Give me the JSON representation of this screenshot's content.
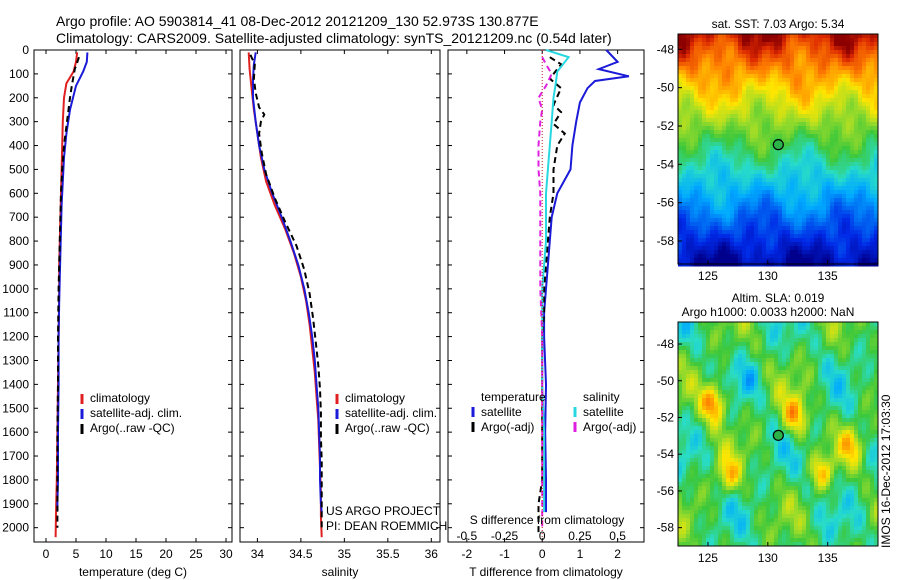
{
  "title": {
    "line1": "Argo profile: AO 5903814_41 08-Dec-2012 20121209_130 52.973S 130.877E",
    "line2": "Climatology: CARS2009. Satellite-adjusted climatology: synTS_20121209.nc (0.54d later)"
  },
  "colors": {
    "climatology": "#e02020",
    "satellite": "#1a1ad8",
    "argo_T": "#000000",
    "satellite_S": "#28d8e0",
    "argo_S": "#e020e0"
  },
  "chart_data": [
    {
      "id": "temperature",
      "type": "line",
      "xlabel": "temperature (deg C)",
      "ylabel": "",
      "xlim": [
        -2,
        31
      ],
      "ylim": [
        2060,
        0
      ],
      "xticks": [
        0,
        5,
        10,
        15,
        20,
        25,
        30
      ],
      "yticks": [
        0,
        100,
        200,
        300,
        400,
        500,
        600,
        700,
        800,
        900,
        1000,
        1100,
        1200,
        1300,
        1400,
        1500,
        1600,
        1700,
        1800,
        1900,
        2000
      ],
      "legend": [
        "climatology",
        "satellite-adj. clim.",
        "Argo(..raw -QC)"
      ],
      "series": [
        {
          "name": "climatology",
          "style": "solid",
          "color_key": "climatology",
          "points": [
            [
              5.2,
              10
            ],
            [
              5.0,
              50
            ],
            [
              4.6,
              90
            ],
            [
              3.4,
              140
            ],
            [
              3.0,
              200
            ],
            [
              2.8,
              300
            ],
            [
              2.7,
              400
            ],
            [
              2.6,
              500
            ],
            [
              2.5,
              600
            ],
            [
              2.4,
              700
            ],
            [
              2.3,
              800
            ],
            [
              2.2,
              900
            ],
            [
              2.2,
              1000
            ],
            [
              2.1,
              1200
            ],
            [
              2.0,
              1400
            ],
            [
              1.9,
              1600
            ],
            [
              1.8,
              1800
            ],
            [
              1.7,
              1900
            ],
            [
              1.6,
              2040
            ]
          ]
        },
        {
          "name": "satellite-adj. clim.",
          "style": "solid",
          "color_key": "satellite",
          "points": [
            [
              6.9,
              10
            ],
            [
              6.8,
              50
            ],
            [
              6.2,
              90
            ],
            [
              5.0,
              150
            ],
            [
              4.0,
              250
            ],
            [
              3.4,
              350
            ],
            [
              3.0,
              450
            ],
            [
              2.8,
              550
            ],
            [
              2.6,
              650
            ],
            [
              2.5,
              750
            ],
            [
              2.4,
              850
            ],
            [
              2.3,
              950
            ],
            [
              2.2,
              1050
            ],
            [
              2.1,
              1200
            ],
            [
              2.1,
              1400
            ],
            [
              2.0,
              1600
            ],
            [
              2.0,
              1800
            ],
            [
              1.9,
              1900
            ],
            [
              1.9,
              1930
            ]
          ]
        },
        {
          "name": "Argo(..raw -QC)",
          "style": "dashed",
          "color_key": "argo_T",
          "points": [
            [
              5.5,
              30
            ],
            [
              4.8,
              80
            ],
            [
              4.3,
              150
            ],
            [
              4.0,
              200
            ],
            [
              3.5,
              300
            ],
            [
              3.0,
              400
            ],
            [
              2.7,
              500
            ],
            [
              2.5,
              600
            ],
            [
              2.4,
              700
            ],
            [
              2.3,
              800
            ],
            [
              2.2,
              900
            ],
            [
              2.1,
              1000
            ],
            [
              2.0,
              1200
            ],
            [
              2.0,
              1400
            ],
            [
              1.9,
              1600
            ],
            [
              1.9,
              1800
            ],
            [
              1.9,
              2000
            ]
          ]
        }
      ]
    },
    {
      "id": "salinity",
      "type": "line",
      "xlabel": "salinity",
      "ylabel": "",
      "xlim": [
        33.8,
        36.1
      ],
      "ylim": [
        2060,
        0
      ],
      "xticks": [
        34,
        34.5,
        35,
        35.5,
        36
      ],
      "legend": [
        "climatology",
        "satellite-adj. clim.",
        "Argo(..raw -QC)"
      ],
      "series": [
        {
          "name": "climatology",
          "style": "solid",
          "color_key": "climatology",
          "points": [
            [
              33.9,
              10
            ],
            [
              33.91,
              80
            ],
            [
              33.93,
              150
            ],
            [
              33.96,
              250
            ],
            [
              34.0,
              350
            ],
            [
              34.04,
              450
            ],
            [
              34.1,
              550
            ],
            [
              34.2,
              650
            ],
            [
              34.32,
              750
            ],
            [
              34.42,
              850
            ],
            [
              34.5,
              950
            ],
            [
              34.56,
              1050
            ],
            [
              34.6,
              1150
            ],
            [
              34.63,
              1250
            ],
            [
              34.66,
              1350
            ],
            [
              34.68,
              1450
            ],
            [
              34.7,
              1550
            ],
            [
              34.71,
              1650
            ],
            [
              34.72,
              1750
            ],
            [
              34.73,
              1850
            ],
            [
              34.73,
              1950
            ],
            [
              34.74,
              2040
            ]
          ]
        },
        {
          "name": "satellite-adj. clim.",
          "style": "solid",
          "color_key": "satellite",
          "points": [
            [
              33.98,
              10
            ],
            [
              33.96,
              60
            ],
            [
              33.95,
              120
            ],
            [
              33.95,
              200
            ],
            [
              33.98,
              300
            ],
            [
              34.02,
              400
            ],
            [
              34.08,
              500
            ],
            [
              34.17,
              600
            ],
            [
              34.28,
              700
            ],
            [
              34.38,
              800
            ],
            [
              34.47,
              900
            ],
            [
              34.54,
              1000
            ],
            [
              34.59,
              1100
            ],
            [
              34.63,
              1200
            ],
            [
              34.66,
              1300
            ],
            [
              34.68,
              1400
            ],
            [
              34.7,
              1500
            ],
            [
              34.71,
              1600
            ],
            [
              34.72,
              1700
            ],
            [
              34.72,
              1800
            ],
            [
              34.73,
              1900
            ],
            [
              34.74,
              1935
            ]
          ]
        },
        {
          "name": "Argo(..raw -QC)",
          "style": "dashed",
          "color_key": "argo_T",
          "points": [
            [
              33.92,
              20
            ],
            [
              33.97,
              60
            ],
            [
              33.96,
              120
            ],
            [
              33.98,
              180
            ],
            [
              34.02,
              240
            ],
            [
              34.08,
              270
            ],
            [
              34.04,
              300
            ],
            [
              34.02,
              350
            ],
            [
              34.05,
              430
            ],
            [
              34.1,
              520
            ],
            [
              34.2,
              620
            ],
            [
              34.32,
              720
            ],
            [
              34.45,
              820
            ],
            [
              34.54,
              920
            ],
            [
              34.6,
              1020
            ],
            [
              34.64,
              1120
            ],
            [
              34.67,
              1220
            ],
            [
              34.7,
              1320
            ],
            [
              34.72,
              1420
            ],
            [
              34.73,
              1520
            ],
            [
              34.73,
              1620
            ],
            [
              34.74,
              1720
            ],
            [
              34.74,
              1820
            ],
            [
              34.74,
              1920
            ],
            [
              34.74,
              2000
            ]
          ]
        }
      ],
      "annotations": [
        "US ARGO PROJECT",
        "PI: DEAN ROEMMICH"
      ]
    },
    {
      "id": "differences",
      "type": "line",
      "xlabel": "T difference from climatology",
      "xlabel2": "S difference from climatology",
      "xlim": [
        -2.5,
        2.7
      ],
      "ylim": [
        2060,
        0
      ],
      "xticks": [
        -2,
        -1,
        0,
        1,
        2
      ],
      "xticks2": [
        -0.5,
        -0.25,
        0,
        0.25,
        0.5
      ],
      "legend_headers": [
        "temperature",
        "salinity"
      ],
      "legend": [
        "satellite",
        "Argo(-adj)",
        "satellite",
        "Argo(-adj)"
      ],
      "series": [
        {
          "name": "satellite",
          "group": "temperature",
          "style": "solid",
          "color_key": "satellite",
          "points": [
            [
              1.7,
              0
            ],
            [
              2.0,
              50
            ],
            [
              1.5,
              80
            ],
            [
              2.3,
              110
            ],
            [
              1.4,
              130
            ],
            [
              1.2,
              160
            ],
            [
              1.0,
              220
            ],
            [
              0.9,
              300
            ],
            [
              0.8,
              400
            ],
            [
              0.75,
              500
            ],
            [
              0.4,
              600
            ],
            [
              0.25,
              700
            ],
            [
              0.2,
              800
            ],
            [
              0.15,
              900
            ],
            [
              0.1,
              1000
            ],
            [
              0.05,
              1100
            ],
            [
              0.05,
              1200
            ],
            [
              0.1,
              1400
            ],
            [
              0.08,
              1600
            ],
            [
              0.1,
              1800
            ],
            [
              0.1,
              1900
            ],
            [
              0.1,
              1935
            ]
          ]
        },
        {
          "name": "Argo(-adj)",
          "group": "temperature",
          "style": "dashed",
          "color_key": "argo_T",
          "points": [
            [
              0.2,
              30
            ],
            [
              0.5,
              60
            ],
            [
              0.2,
              120
            ],
            [
              0.5,
              160
            ],
            [
              0.3,
              230
            ],
            [
              0.5,
              260
            ],
            [
              0.3,
              310
            ],
            [
              0.6,
              350
            ],
            [
              0.4,
              400
            ],
            [
              0.3,
              500
            ],
            [
              0.3,
              600
            ],
            [
              0.2,
              700
            ],
            [
              0.15,
              800
            ],
            [
              0.1,
              900
            ],
            [
              0.05,
              1000
            ],
            [
              0.05,
              1100
            ],
            [
              0.0,
              1200
            ],
            [
              0.0,
              1400
            ],
            [
              0.0,
              1600
            ],
            [
              0.0,
              1800
            ],
            [
              -0.1,
              1900
            ],
            [
              -0.1,
              2020
            ]
          ]
        },
        {
          "name": "satellite",
          "group": "salinity",
          "style": "solid",
          "color_key": "satellite_S",
          "points": [
            [
              0.1,
              0
            ],
            [
              0.7,
              30
            ],
            [
              0.4,
              90
            ],
            [
              0.35,
              150
            ],
            [
              0.3,
              200
            ],
            [
              0.25,
              300
            ],
            [
              0.2,
              400
            ],
            [
              0.15,
              500
            ],
            [
              0.1,
              600
            ],
            [
              0.1,
              700
            ],
            [
              0.1,
              800
            ],
            [
              0.05,
              900
            ],
            [
              0.0,
              1000
            ],
            [
              0.0,
              1100
            ],
            [
              0.0,
              1200
            ],
            [
              0.0,
              1400
            ],
            [
              0.05,
              1600
            ],
            [
              0.05,
              1800
            ],
            [
              0.05,
              1935
            ]
          ]
        },
        {
          "name": "Argo(-adj)",
          "group": "salinity",
          "style": "dashed",
          "color_key": "argo_S",
          "points": [
            [
              0.0,
              30
            ],
            [
              0.1,
              60
            ],
            [
              0.25,
              100
            ],
            [
              0.1,
              150
            ],
            [
              -0.1,
              200
            ],
            [
              0.0,
              250
            ],
            [
              -0.05,
              300
            ],
            [
              -0.1,
              400
            ],
            [
              -0.1,
              500
            ],
            [
              -0.05,
              600
            ],
            [
              -0.05,
              700
            ],
            [
              -0.05,
              800
            ],
            [
              -0.05,
              900
            ],
            [
              -0.05,
              1000
            ],
            [
              0.0,
              1200
            ],
            [
              0.0,
              1400
            ],
            [
              0.0,
              1600
            ],
            [
              0.0,
              1800
            ],
            [
              0.0,
              2000
            ]
          ]
        }
      ]
    },
    {
      "id": "sst-map",
      "type": "heatmap",
      "title": "sat. SST: 7.03 Argo: 5.34",
      "xlim": [
        122.5,
        139.2
      ],
      "ylim": [
        -59.2,
        -47.2
      ],
      "xticks": [
        125,
        130,
        135
      ],
      "yticks": [
        -48,
        -50,
        -52,
        -54,
        -56,
        -58
      ],
      "marker": {
        "lon": 130.877,
        "lat": -52.973
      }
    },
    {
      "id": "sla-map",
      "type": "heatmap",
      "title": "Altim. SLA: 0.019",
      "subtitle": "Argo h1000: 0.0033 h2000: NaN",
      "xlim": [
        122.5,
        139.2
      ],
      "ylim": [
        -59.0,
        -46.8
      ],
      "xticks": [
        125,
        130,
        135
      ],
      "yticks": [
        -48,
        -50,
        -52,
        -54,
        -56,
        -58
      ],
      "marker": {
        "lon": 130.877,
        "lat": -52.973
      },
      "side_label": "IMOS 16-Dec-2012 17:03:30"
    }
  ]
}
